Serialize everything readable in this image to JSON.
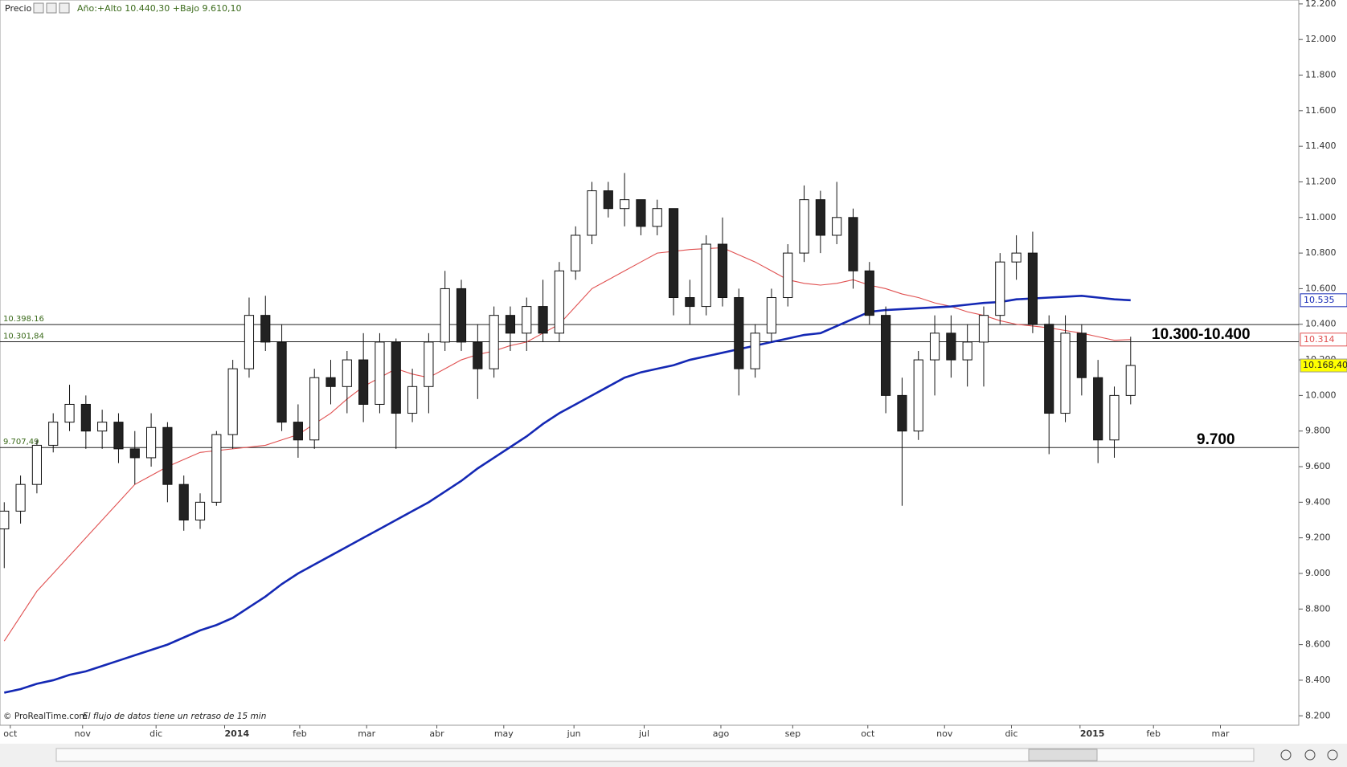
{
  "chart_data": {
    "type": "candlestick",
    "title": "Precio",
    "subtitle": "Año:+Alto 10.440,30 +Bajo 9.610,10",
    "footer": "© ProRealTime.com",
    "footer_note": "El flujo de datos tiene un retraso de 15 min",
    "xlim": [
      -0.26,
      79.3
    ],
    "ylim": [
      8147,
      12222
    ],
    "xticks": [
      {
        "value": 0.37,
        "label": "oct"
      },
      {
        "value": 4.8,
        "label": "nov"
      },
      {
        "value": 9.3,
        "label": "dic"
      },
      {
        "value": 13.5,
        "label": "2014"
      },
      {
        "value": 18.1,
        "label": "feb"
      },
      {
        "value": 22.2,
        "label": "mar"
      },
      {
        "value": 26.5,
        "label": "abr"
      },
      {
        "value": 30.6,
        "label": "may"
      },
      {
        "value": 34.9,
        "label": "jun"
      },
      {
        "value": 39.2,
        "label": "jul"
      },
      {
        "value": 43.9,
        "label": "ago"
      },
      {
        "value": 48.3,
        "label": "sep"
      },
      {
        "value": 52.9,
        "label": "oct"
      },
      {
        "value": 57.6,
        "label": "nov"
      },
      {
        "value": 61.7,
        "label": "dic"
      },
      {
        "value": 65.9,
        "label": "2015"
      },
      {
        "value": 70.4,
        "label": "feb"
      },
      {
        "value": 74.5,
        "label": "mar"
      }
    ],
    "yticks": [
      {
        "value": 8200,
        "label": "8.200"
      },
      {
        "value": 8400,
        "label": "8.400"
      },
      {
        "value": 8600,
        "label": "8.600"
      },
      {
        "value": 8800,
        "label": "8.800"
      },
      {
        "value": 9000,
        "label": "9.000"
      },
      {
        "value": 9200,
        "label": "9.200"
      },
      {
        "value": 9400,
        "label": "9.400"
      },
      {
        "value": 9600,
        "label": "9.600"
      },
      {
        "value": 9800,
        "label": "9.800"
      },
      {
        "value": 10000,
        "label": "10.000"
      },
      {
        "value": 10200,
        "label": "10.200"
      },
      {
        "value": 10400,
        "label": "10.400"
      },
      {
        "value": 10600,
        "label": "10.600"
      },
      {
        "value": 10800,
        "label": "10.800"
      },
      {
        "value": 11000,
        "label": "11.000"
      },
      {
        "value": 11200,
        "label": "11.200"
      },
      {
        "value": 11400,
        "label": "11.400"
      },
      {
        "value": 11600,
        "label": "11.600"
      },
      {
        "value": 11800,
        "label": "11.800"
      },
      {
        "value": 12000,
        "label": "12.000"
      },
      {
        "value": 12200,
        "label": "12.200"
      }
    ],
    "x": [
      0,
      1,
      2,
      3,
      4,
      5,
      6,
      7,
      8,
      9,
      10,
      11,
      12,
      13,
      14,
      15,
      16,
      17,
      18,
      19,
      20,
      21,
      22,
      23,
      24,
      25,
      26,
      27,
      28,
      29,
      30,
      31,
      32,
      33,
      34,
      35,
      36,
      37,
      38,
      39,
      40,
      41,
      42,
      43,
      44,
      45,
      46,
      47,
      48,
      49,
      50,
      51,
      52,
      53,
      54,
      55,
      56,
      57,
      58,
      59,
      60,
      61,
      62,
      63,
      64,
      65,
      66,
      67,
      68,
      69
    ],
    "categories": [
      null,
      null,
      null,
      null,
      null,
      null,
      null,
      null,
      null,
      null,
      null,
      null,
      null,
      null,
      null,
      null,
      null,
      null,
      null,
      null,
      null,
      null,
      null,
      null,
      null,
      null,
      null,
      null,
      null,
      null,
      null,
      null,
      null,
      null,
      null,
      null,
      null,
      null,
      null,
      null,
      null,
      null,
      null,
      null,
      null,
      null,
      null,
      null,
      null,
      null,
      null,
      null,
      null,
      null,
      null,
      null,
      null,
      null,
      null,
      null,
      null,
      null,
      null,
      null,
      null,
      null,
      null,
      null,
      null,
      null
    ],
    "open": [
      9250,
      9350,
      9500,
      9720,
      9850,
      9950,
      9800,
      9850,
      9700,
      9650,
      9820,
      9500,
      9300,
      9400,
      9780,
      10150,
      10450,
      10300,
      9850,
      9750,
      10100,
      10050,
      10200,
      9950,
      10300,
      9900,
      10050,
      10300,
      10600,
      10300,
      10150,
      10450,
      10350,
      10500,
      10350,
      10700,
      10900,
      11150,
      11050,
      11100,
      10950,
      11050,
      10550,
      10500,
      10850,
      10550,
      10150,
      10350,
      10550,
      10800,
      11100,
      10900,
      11000,
      10700,
      10450,
      10000,
      9800,
      10200,
      10350,
      10200,
      10300,
      10450,
      10750,
      10800,
      10400,
      9900,
      10350,
      10100,
      9750,
      10000
    ],
    "high": [
      9400,
      9550,
      9750,
      9900,
      10060,
      10000,
      9920,
      9900,
      9800,
      9900,
      9850,
      9550,
      9450,
      9800,
      10200,
      10550,
      10560,
      10400,
      9950,
      10150,
      10200,
      10250,
      10350,
      10350,
      10320,
      10150,
      10350,
      10700,
      10650,
      10400,
      10500,
      10500,
      10550,
      10650,
      10750,
      10950,
      11200,
      11200,
      11250,
      11100,
      11100,
      11050,
      10650,
      10900,
      11000,
      10600,
      10400,
      10600,
      10850,
      11180,
      11150,
      11200,
      11050,
      10750,
      10500,
      10100,
      10250,
      10450,
      10450,
      10400,
      10500,
      10800,
      10900,
      10920,
      10450,
      10450,
      10400,
      10200,
      10050,
      10330
    ],
    "low": [
      9030,
      9280,
      9450,
      9680,
      9800,
      9700,
      9700,
      9620,
      9500,
      9600,
      9400,
      9240,
      9250,
      9380,
      9700,
      10100,
      10250,
      9800,
      9650,
      9700,
      9950,
      9900,
      9850,
      9900,
      9700,
      9850,
      9900,
      10250,
      10250,
      9980,
      10100,
      10250,
      10250,
      10300,
      10300,
      10650,
      10850,
      11000,
      10950,
      10900,
      10900,
      10450,
      10400,
      10450,
      10500,
      10000,
      10100,
      10300,
      10500,
      10750,
      10800,
      10850,
      10600,
      10400,
      9900,
      9380,
      9750,
      10000,
      10100,
      10050,
      10050,
      10400,
      10650,
      10350,
      9670,
      9850,
      10000,
      9620,
      9650,
      9950
    ],
    "close": [
      9350,
      9500,
      9720,
      9850,
      9950,
      9800,
      9850,
      9700,
      9650,
      9820,
      9500,
      9300,
      9400,
      9780,
      10150,
      10450,
      10300,
      9850,
      9750,
      10100,
      10050,
      10200,
      9950,
      10300,
      9900,
      10050,
      10300,
      10600,
      10300,
      10150,
      10450,
      10350,
      10500,
      10350,
      10700,
      10900,
      11150,
      11050,
      11100,
      10950,
      11050,
      10550,
      10500,
      10850,
      10550,
      10150,
      10350,
      10550,
      10800,
      11100,
      10900,
      11000,
      10700,
      10450,
      10000,
      9800,
      10200,
      10350,
      10200,
      10300,
      10450,
      10750,
      10800,
      10400,
      9900,
      10350,
      10100,
      9750,
      10000,
      10168.4
    ],
    "last_close_label": "10.168,40",
    "series": [
      {
        "color": "#e05050",
        "last_label": "10.314",
        "values": [
          8620,
          8760,
          8900,
          9000,
          9100,
          9200,
          9300,
          9400,
          9500,
          9550,
          9600,
          9640,
          9680,
          9690,
          9700,
          9710,
          9720,
          9750,
          9780,
          9840,
          9900,
          9980,
          10050,
          10100,
          10150,
          10120,
          10100,
          10150,
          10200,
          10230,
          10250,
          10280,
          10300,
          10350,
          10400,
          10500,
          10600,
          10650,
          10700,
          10750,
          10800,
          10810,
          10820,
          10825,
          10830,
          10790,
          10750,
          10700,
          10650,
          10630,
          10620,
          10630,
          10650,
          10620,
          10600,
          10570,
          10550,
          10520,
          10500,
          10470,
          10450,
          10420,
          10400,
          10390,
          10380,
          10365,
          10350,
          10330,
          10310,
          10314
        ]
      },
      {
        "color": "#1428b4",
        "last_label": "10.535",
        "values": [
          8330,
          8350,
          8380,
          8400,
          8430,
          8450,
          8480,
          8510,
          8540,
          8570,
          8600,
          8640,
          8680,
          8710,
          8750,
          8810,
          8870,
          8940,
          9000,
          9050,
          9100,
          9150,
          9200,
          9250,
          9300,
          9350,
          9400,
          9460,
          9520,
          9590,
          9650,
          9710,
          9770,
          9840,
          9900,
          9950,
          10000,
          10050,
          10100,
          10130,
          10150,
          10170,
          10200,
          10220,
          10240,
          10260,
          10280,
          10300,
          10320,
          10340,
          10350,
          10390,
          10430,
          10470,
          10480,
          10485,
          10490,
          10495,
          10500,
          10510,
          10520,
          10525,
          10540,
          10545,
          10550,
          10555,
          10560,
          10550,
          10540,
          10535
        ]
      }
    ],
    "hlines": [
      {
        "value": 10398.16,
        "label": "10.398.16"
      },
      {
        "value": 10301.84,
        "label": "10.301,84"
      },
      {
        "value": 9707.49,
        "label": "9.707,49"
      }
    ],
    "annotations": [
      "10.300-10.400",
      "9.700"
    ]
  }
}
